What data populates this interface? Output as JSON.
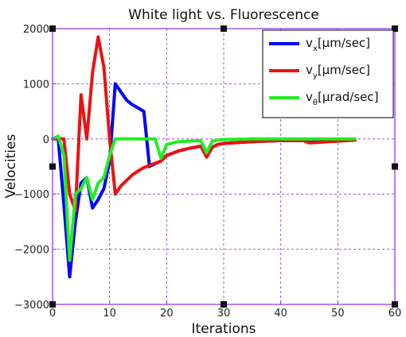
{
  "chart_data": {
    "type": "line",
    "title": "White light vs. Fluorescence",
    "xlabel": "Iterations",
    "ylabel": "Velocities",
    "xlim": [
      0,
      60
    ],
    "ylim": [
      -3000,
      2000
    ],
    "xticks": [
      0,
      10,
      20,
      30,
      40,
      50,
      60
    ],
    "yticks": [
      -3000,
      -2000,
      -1000,
      0,
      1000,
      2000
    ],
    "xtick_labels": [
      "0",
      "10",
      "20",
      "30",
      "40",
      "50",
      "60"
    ],
    "ytick_labels": [
      "−3000",
      "−2000",
      "−1000",
      "0",
      "1000",
      "2000"
    ],
    "grid": true,
    "legend_position": "top-right",
    "axis_color": "#8a2be2",
    "series": [
      {
        "name": "v",
        "name_sub": "x",
        "name_unit": "[μm/sec]",
        "color": "#0000ff",
        "x": [
          0,
          1,
          2,
          3,
          4,
          5,
          6,
          7,
          8,
          9,
          10,
          11,
          12,
          13,
          14,
          15,
          16,
          17,
          18,
          19,
          20,
          22,
          24,
          26,
          27,
          28,
          29,
          30,
          35,
          40,
          44,
          45,
          50,
          53
        ],
        "y": [
          0,
          0,
          -1200,
          -2500,
          -1500,
          -800,
          -700,
          -1250,
          -1100,
          -900,
          -400,
          1000,
          850,
          700,
          620,
          560,
          500,
          -500,
          -450,
          -400,
          -300,
          -220,
          -170,
          -130,
          -300,
          -150,
          -100,
          -80,
          -50,
          -30,
          -30,
          -60,
          -30,
          -20
        ]
      },
      {
        "name": "v",
        "name_sub": "y",
        "name_unit": "[μm/sec]",
        "color": "#ee1111",
        "x": [
          0,
          1,
          2,
          3,
          4,
          5,
          6,
          7,
          8,
          9,
          10,
          11,
          12,
          13,
          14,
          15,
          16,
          17,
          18,
          19,
          20,
          22,
          24,
          26,
          27,
          28,
          29,
          30,
          35,
          40,
          44,
          45,
          50,
          53
        ],
        "y": [
          0,
          0,
          0,
          -1000,
          -1300,
          800,
          0,
          1200,
          1850,
          1300,
          0,
          -1000,
          -850,
          -750,
          -650,
          -580,
          -520,
          -480,
          -440,
          -400,
          -300,
          -220,
          -170,
          -130,
          -330,
          -150,
          -100,
          -80,
          -50,
          -30,
          -30,
          -70,
          -40,
          -20
        ]
      },
      {
        "name": "v",
        "name_sub": "θ",
        "name_unit": "[μrad/sec]",
        "color": "#22ee22",
        "x": [
          0,
          1,
          2,
          3,
          4,
          5,
          6,
          7,
          8,
          9,
          10,
          11,
          12,
          13,
          14,
          15,
          16,
          17,
          18,
          19,
          20,
          22,
          24,
          26,
          27,
          28,
          29,
          30,
          35,
          40,
          44,
          45,
          50,
          53
        ],
        "y": [
          0,
          50,
          -300,
          -2200,
          -1000,
          -900,
          -700,
          -1100,
          -800,
          -700,
          -300,
          0,
          0,
          0,
          0,
          0,
          0,
          0,
          0,
          -350,
          -100,
          -50,
          -40,
          -30,
          -250,
          -40,
          -20,
          -10,
          0,
          0,
          0,
          0,
          0,
          0
        ]
      }
    ]
  }
}
